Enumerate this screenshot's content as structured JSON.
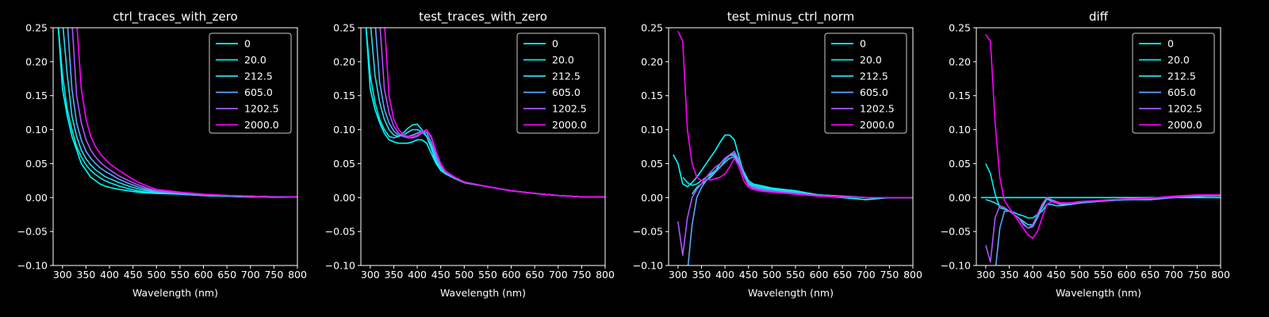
{
  "figure": {
    "background": "#000000",
    "foreground": "#ffffff"
  },
  "chart_data": [
    {
      "type": "line",
      "title": "ctrl_traces_with_zero",
      "xlabel": "Wavelength (nm)",
      "ylabel": "",
      "xlim": [
        280,
        800
      ],
      "ylim": [
        -0.1,
        0.25
      ],
      "xticks": [
        300,
        350,
        400,
        450,
        500,
        550,
        600,
        650,
        700,
        750,
        800
      ],
      "xtick_labels": [
        "300",
        "350",
        "400",
        "450",
        "500",
        "550",
        "600",
        "650",
        "700",
        "750",
        "800"
      ],
      "yticks": [
        -0.1,
        -0.05,
        0.0,
        0.05,
        0.1,
        0.15,
        0.2,
        0.25
      ],
      "ytick_labels": [
        "−0.10",
        "−0.05",
        "0.00",
        "0.05",
        "0.10",
        "0.15",
        "0.20",
        "0.25"
      ],
      "grid": false,
      "legend_position": "upper-right",
      "x": [
        280,
        290,
        300,
        310,
        320,
        330,
        340,
        350,
        360,
        370,
        380,
        390,
        400,
        420,
        440,
        460,
        480,
        500,
        550,
        600,
        650,
        700,
        750,
        800
      ],
      "series": [
        {
          "name": "0",
          "color": "#00ffff",
          "values": [
            0.26,
            0.26,
            0.16,
            0.12,
            0.09,
            0.07,
            0.05,
            0.04,
            0.03,
            0.025,
            0.02,
            0.017,
            0.015,
            0.012,
            0.01,
            0.008,
            0.007,
            0.006,
            0.005,
            0.003,
            0.002,
            0.001,
            0.001,
            0.001
          ]
        },
        {
          "name": "20.0",
          "color": "#00f0f0",
          "values": [
            0.26,
            0.26,
            0.18,
            0.13,
            0.1,
            0.075,
            0.06,
            0.048,
            0.04,
            0.034,
            0.029,
            0.025,
            0.022,
            0.017,
            0.013,
            0.01,
            0.008,
            0.007,
            0.005,
            0.003,
            0.002,
            0.001,
            0.001,
            0.001
          ]
        },
        {
          "name": "212.5",
          "color": "#2fd8f0",
          "values": [
            0.26,
            0.26,
            0.26,
            0.18,
            0.12,
            0.09,
            0.07,
            0.057,
            0.048,
            0.041,
            0.036,
            0.031,
            0.028,
            0.022,
            0.017,
            0.013,
            0.01,
            0.008,
            0.006,
            0.004,
            0.003,
            0.002,
            0.001,
            0.001
          ]
        },
        {
          "name": "605.0",
          "color": "#55aaff",
          "values": [
            0.26,
            0.26,
            0.26,
            0.26,
            0.16,
            0.11,
            0.085,
            0.068,
            0.058,
            0.05,
            0.044,
            0.039,
            0.035,
            0.027,
            0.021,
            0.016,
            0.012,
            0.009,
            0.006,
            0.004,
            0.003,
            0.002,
            0.001,
            0.001
          ]
        },
        {
          "name": "1202.5",
          "color": "#aa55ff",
          "values": [
            0.26,
            0.26,
            0.26,
            0.26,
            0.26,
            0.15,
            0.11,
            0.085,
            0.07,
            0.06,
            0.052,
            0.046,
            0.041,
            0.032,
            0.025,
            0.019,
            0.014,
            0.01,
            0.007,
            0.004,
            0.003,
            0.002,
            0.001,
            0.001
          ]
        },
        {
          "name": "2000.0",
          "color": "#ff00ff",
          "values": [
            0.26,
            0.26,
            0.26,
            0.26,
            0.26,
            0.26,
            0.16,
            0.115,
            0.09,
            0.075,
            0.065,
            0.057,
            0.05,
            0.04,
            0.031,
            0.023,
            0.017,
            0.012,
            0.008,
            0.005,
            0.003,
            0.002,
            0.0,
            0.001
          ]
        }
      ]
    },
    {
      "type": "line",
      "title": "test_traces_with_zero",
      "xlabel": "Wavelength (nm)",
      "ylabel": "",
      "xlim": [
        280,
        800
      ],
      "ylim": [
        -0.1,
        0.25
      ],
      "xticks": [
        300,
        350,
        400,
        450,
        500,
        550,
        600,
        650,
        700,
        750,
        800
      ],
      "xtick_labels": [
        "300",
        "350",
        "400",
        "450",
        "500",
        "550",
        "600",
        "650",
        "700",
        "750",
        "800"
      ],
      "yticks": [
        -0.1,
        -0.05,
        0.0,
        0.05,
        0.1,
        0.15,
        0.2,
        0.25
      ],
      "ytick_labels": [
        "−0.10",
        "−0.05",
        "0.00",
        "0.05",
        "0.10",
        "0.15",
        "0.20",
        "0.25"
      ],
      "grid": false,
      "legend_position": "upper-right",
      "x": [
        280,
        290,
        300,
        310,
        320,
        330,
        340,
        350,
        360,
        370,
        380,
        390,
        400,
        410,
        420,
        430,
        440,
        450,
        460,
        480,
        500,
        550,
        600,
        650,
        700,
        750,
        800
      ],
      "series": [
        {
          "name": "0",
          "color": "#00ffff",
          "values": [
            0.26,
            0.26,
            0.16,
            0.13,
            0.11,
            0.095,
            0.085,
            0.082,
            0.08,
            0.08,
            0.08,
            0.082,
            0.085,
            0.085,
            0.08,
            0.065,
            0.05,
            0.04,
            0.035,
            0.028,
            0.022,
            0.016,
            0.01,
            0.006,
            0.003,
            0.001,
            0.001
          ]
        },
        {
          "name": "20.0",
          "color": "#00f0f0",
          "values": [
            0.26,
            0.26,
            0.18,
            0.14,
            0.115,
            0.1,
            0.09,
            0.088,
            0.09,
            0.095,
            0.102,
            0.107,
            0.108,
            0.1,
            0.09,
            0.072,
            0.052,
            0.04,
            0.035,
            0.028,
            0.022,
            0.016,
            0.01,
            0.006,
            0.003,
            0.001,
            0.001
          ]
        },
        {
          "name": "212.5",
          "color": "#2fd8f0",
          "values": [
            0.26,
            0.26,
            0.26,
            0.18,
            0.14,
            0.115,
            0.1,
            0.092,
            0.09,
            0.092,
            0.096,
            0.1,
            0.1,
            0.097,
            0.09,
            0.075,
            0.055,
            0.042,
            0.036,
            0.028,
            0.023,
            0.016,
            0.01,
            0.006,
            0.003,
            0.001,
            0.001
          ]
        },
        {
          "name": "605.0",
          "color": "#55aaff",
          "values": [
            0.26,
            0.26,
            0.26,
            0.26,
            0.17,
            0.13,
            0.11,
            0.098,
            0.092,
            0.09,
            0.09,
            0.092,
            0.095,
            0.097,
            0.096,
            0.08,
            0.06,
            0.045,
            0.037,
            0.029,
            0.023,
            0.016,
            0.01,
            0.006,
            0.003,
            0.001,
            0.001
          ]
        },
        {
          "name": "1202.5",
          "color": "#aa55ff",
          "values": [
            0.26,
            0.26,
            0.26,
            0.26,
            0.26,
            0.16,
            0.125,
            0.105,
            0.095,
            0.09,
            0.088,
            0.088,
            0.09,
            0.095,
            0.1,
            0.088,
            0.065,
            0.048,
            0.038,
            0.029,
            0.023,
            0.016,
            0.01,
            0.006,
            0.003,
            0.001,
            0.001
          ]
        },
        {
          "name": "2000.0",
          "color": "#ff00ff",
          "values": [
            0.26,
            0.26,
            0.26,
            0.26,
            0.26,
            0.26,
            0.15,
            0.115,
            0.1,
            0.093,
            0.09,
            0.09,
            0.092,
            0.097,
            0.1,
            0.09,
            0.068,
            0.05,
            0.039,
            0.03,
            0.023,
            0.016,
            0.01,
            0.006,
            0.003,
            0.001,
            0.001
          ]
        }
      ]
    },
    {
      "type": "line",
      "title": "test_minus_ctrl_norm",
      "xlabel": "Wavelength (nm)",
      "ylabel": "",
      "xlim": [
        280,
        800
      ],
      "ylim": [
        -0.1,
        0.25
      ],
      "xticks": [
        300,
        350,
        400,
        450,
        500,
        550,
        600,
        650,
        700,
        750,
        800
      ],
      "xtick_labels": [
        "300",
        "350",
        "400",
        "450",
        "500",
        "550",
        "600",
        "650",
        "700",
        "750",
        "800"
      ],
      "yticks": [
        -0.1,
        -0.05,
        0.0,
        0.05,
        0.1,
        0.15,
        0.2,
        0.25
      ],
      "ytick_labels": [
        "−0.10",
        "−0.05",
        "0.00",
        "0.05",
        "0.10",
        "0.15",
        "0.20",
        "0.25"
      ],
      "grid": false,
      "legend_position": "upper-right",
      "x": [
        290,
        300,
        310,
        320,
        330,
        340,
        350,
        360,
        370,
        380,
        390,
        400,
        410,
        420,
        430,
        440,
        450,
        460,
        480,
        500,
        550,
        600,
        650,
        700,
        750,
        800
      ],
      "series": [
        {
          "name": "0",
          "color": "#00ffff",
          "values": [
            0.063,
            0.05,
            0.02,
            0.016,
            0.022,
            0.03,
            0.04,
            0.05,
            0.06,
            0.07,
            0.082,
            0.092,
            0.092,
            0.085,
            0.06,
            0.035,
            0.025,
            0.02,
            0.017,
            0.014,
            0.01,
            0.003,
            0.0,
            -0.003,
            0.0,
            0.0
          ]
        },
        {
          "name": "20.0",
          "color": "#00f0f0",
          "values": [
            null,
            null,
            0.03,
            0.022,
            0.018,
            0.02,
            0.025,
            0.03,
            0.035,
            0.04,
            0.05,
            0.058,
            0.062,
            0.062,
            0.055,
            0.038,
            0.025,
            0.02,
            0.016,
            0.013,
            0.01,
            0.004,
            0.002,
            0.0,
            0.0,
            0.0
          ]
        },
        {
          "name": "212.5",
          "color": "#2fd8f0",
          "values": [
            null,
            null,
            null,
            null,
            0.005,
            0.015,
            0.02,
            0.025,
            0.03,
            0.038,
            0.045,
            0.052,
            0.058,
            0.06,
            0.05,
            0.035,
            0.022,
            0.018,
            0.014,
            0.012,
            0.008,
            0.004,
            0.002,
            0.0,
            0.0,
            0.0
          ]
        },
        {
          "name": "605.0",
          "color": "#55aaff",
          "values": [
            null,
            null,
            null,
            -0.11,
            -0.04,
            0.0,
            0.015,
            0.025,
            0.033,
            0.04,
            0.045,
            0.055,
            0.062,
            0.065,
            0.052,
            0.032,
            0.02,
            0.016,
            0.012,
            0.01,
            0.007,
            0.003,
            0.001,
            0.0,
            0.0,
            0.0
          ]
        },
        {
          "name": "1202.5",
          "color": "#aa55ff",
          "values": [
            null,
            -0.035,
            -0.085,
            -0.03,
            0.0,
            0.012,
            0.02,
            0.03,
            0.038,
            0.045,
            0.05,
            0.058,
            0.063,
            0.068,
            0.055,
            0.032,
            0.018,
            0.014,
            0.011,
            0.009,
            0.006,
            0.003,
            0.001,
            0.0,
            0.0,
            0.0
          ]
        },
        {
          "name": "2000.0",
          "color": "#ff00ff",
          "values": [
            null,
            0.245,
            0.23,
            0.1,
            0.05,
            0.03,
            0.025,
            0.027,
            0.026,
            0.028,
            0.03,
            0.035,
            0.045,
            0.058,
            0.045,
            0.025,
            0.015,
            0.012,
            0.009,
            0.008,
            0.005,
            0.002,
            0.001,
            0.0,
            0.0,
            0.0
          ]
        }
      ]
    },
    {
      "type": "line",
      "title": "diff",
      "xlabel": "Wavelength (nm)",
      "ylabel": "",
      "xlim": [
        280,
        800
      ],
      "ylim": [
        -0.1,
        0.25
      ],
      "xticks": [
        300,
        350,
        400,
        450,
        500,
        550,
        600,
        650,
        700,
        750,
        800
      ],
      "xtick_labels": [
        "300",
        "350",
        "400",
        "450",
        "500",
        "550",
        "600",
        "650",
        "700",
        "750",
        "800"
      ],
      "yticks": [
        -0.1,
        -0.05,
        0.0,
        0.05,
        0.1,
        0.15,
        0.2,
        0.25
      ],
      "ytick_labels": [
        "−0.10",
        "−0.05",
        "0.00",
        "0.05",
        "0.10",
        "0.15",
        "0.20",
        "0.25"
      ],
      "grid": false,
      "legend_position": "upper-right",
      "x": [
        290,
        300,
        310,
        320,
        330,
        340,
        350,
        360,
        370,
        380,
        390,
        400,
        410,
        420,
        430,
        440,
        450,
        460,
        480,
        500,
        550,
        600,
        650,
        700,
        750,
        800
      ],
      "series": [
        {
          "name": "0",
          "color": "#00ffff",
          "values": [
            0.0,
            0.0,
            0.0,
            0.0,
            0.0,
            0.0,
            0.0,
            0.0,
            0.0,
            0.0,
            0.0,
            0.0,
            0.0,
            0.0,
            0.0,
            0.0,
            0.0,
            0.0,
            0.0,
            0.0,
            0.0,
            0.0,
            0.0,
            0.0,
            0.0,
            0.0
          ]
        },
        {
          "name": "20.0",
          "color": "#00f0f0",
          "values": [
            null,
            0.05,
            0.035,
            0.005,
            -0.015,
            -0.017,
            -0.02,
            -0.022,
            -0.025,
            -0.027,
            -0.03,
            -0.03,
            -0.025,
            -0.02,
            -0.01,
            -0.01,
            -0.012,
            -0.012,
            -0.01,
            -0.008,
            -0.005,
            -0.003,
            -0.003,
            0.0,
            0.003,
            0.003
          ]
        },
        {
          "name": "212.5",
          "color": "#2fd8f0",
          "values": [
            null,
            -0.003,
            -0.005,
            -0.008,
            -0.012,
            -0.015,
            -0.02,
            -0.025,
            -0.03,
            -0.035,
            -0.04,
            -0.04,
            -0.03,
            -0.015,
            -0.002,
            -0.005,
            -0.008,
            -0.01,
            -0.01,
            -0.008,
            -0.005,
            -0.003,
            -0.002,
            0.0,
            0.002,
            0.003
          ]
        },
        {
          "name": "605.0",
          "color": "#55aaff",
          "values": [
            null,
            null,
            null,
            -0.11,
            -0.045,
            -0.02,
            -0.02,
            -0.025,
            -0.03,
            -0.038,
            -0.045,
            -0.043,
            -0.03,
            -0.012,
            0.0,
            -0.004,
            -0.008,
            -0.01,
            -0.01,
            -0.008,
            -0.005,
            -0.003,
            -0.002,
            0.0,
            0.002,
            0.003
          ]
        },
        {
          "name": "1202.5",
          "color": "#aa55ff",
          "values": [
            null,
            -0.07,
            -0.095,
            -0.03,
            -0.012,
            -0.015,
            -0.02,
            -0.025,
            -0.03,
            -0.04,
            -0.045,
            -0.04,
            -0.025,
            -0.01,
            0.0,
            -0.003,
            -0.006,
            -0.008,
            -0.008,
            -0.006,
            -0.004,
            -0.002,
            -0.001,
            0.0,
            0.003,
            0.004
          ]
        },
        {
          "name": "2000.0",
          "color": "#ff00ff",
          "values": [
            null,
            0.24,
            0.23,
            0.11,
            0.03,
            -0.005,
            -0.015,
            -0.025,
            -0.035,
            -0.045,
            -0.055,
            -0.06,
            -0.05,
            -0.03,
            -0.01,
            -0.006,
            -0.008,
            -0.008,
            -0.008,
            -0.006,
            -0.004,
            -0.002,
            -0.001,
            0.002,
            0.004,
            0.004
          ]
        }
      ]
    }
  ]
}
